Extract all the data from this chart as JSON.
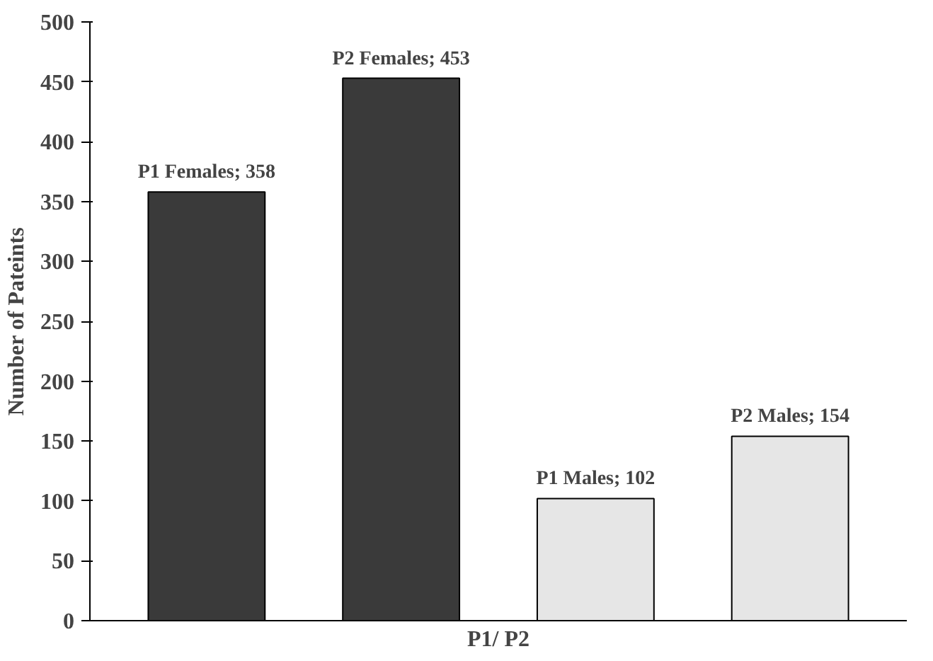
{
  "chart_data": {
    "type": "bar",
    "xlabel": "P1/ P2",
    "ylabel": "Number of Pateints",
    "categories": [
      null,
      null,
      null,
      null
    ],
    "values": [
      358,
      453,
      102,
      154
    ],
    "colors": [
      "#3a3a3a",
      "#3a3a3a",
      "#e6e6e6",
      "#e6e6e6"
    ],
    "value_labels": [
      "P1 Females; 358",
      "P2 Females; 453",
      "P1 Males; 102",
      "P2 Males; 154"
    ],
    "ylim": [
      0,
      500
    ],
    "yticks": [
      0,
      50,
      100,
      150,
      200,
      250,
      300,
      350,
      400,
      450,
      500
    ],
    "grid": false
  }
}
